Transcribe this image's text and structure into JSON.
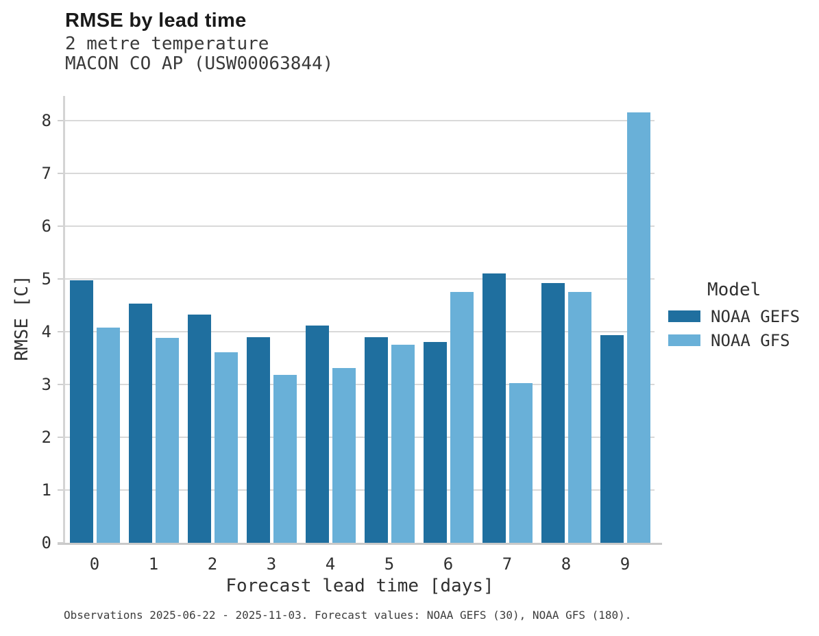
{
  "header": {
    "title": "RMSE by lead time",
    "subtitle_line1": "2 metre temperature",
    "subtitle_line2": "MACON CO AP (USW00063844)"
  },
  "caption": "Observations 2025-06-22 - 2025-11-03. Forecast values: NOAA GEFS (30), NOAA GFS (180).",
  "legend": {
    "title": "Model",
    "items": [
      {
        "label": "NOAA GEFS",
        "color": "#1f6f9f"
      },
      {
        "label": "NOAA GFS",
        "color": "#69b0d8"
      }
    ]
  },
  "colors": {
    "gefs_bar": "#1f6f9f",
    "gfs_bar": "#69b0d8",
    "gridline": "#d9d9d9",
    "axis_spine": "#d4d4d4",
    "text": "#303030"
  },
  "chart_data": {
    "type": "bar",
    "title": "RMSE by lead time",
    "subtitle": [
      "2 metre temperature",
      "MACON CO AP (USW00063844)"
    ],
    "categories": [
      "0",
      "1",
      "2",
      "3",
      "4",
      "5",
      "6",
      "7",
      "8",
      "9"
    ],
    "series": [
      {
        "name": "NOAA GEFS",
        "color": "#1f6f9f",
        "values": [
          4.97,
          4.53,
          4.33,
          3.9,
          4.12,
          3.9,
          3.8,
          5.1,
          4.92,
          3.93
        ]
      },
      {
        "name": "NOAA GFS",
        "color": "#69b0d8",
        "values": [
          4.08,
          3.89,
          3.61,
          3.18,
          3.31,
          3.76,
          4.75,
          3.03,
          4.75,
          8.16
        ]
      }
    ],
    "xlabel": "Forecast lead time [days]",
    "ylabel": "RMSE [C]",
    "ylim": [
      0,
      8.47
    ],
    "yticks": [
      0,
      1,
      2,
      3,
      4,
      5,
      6,
      7,
      8
    ],
    "grid": true,
    "legend_title": "Model",
    "legend_position": "right"
  }
}
